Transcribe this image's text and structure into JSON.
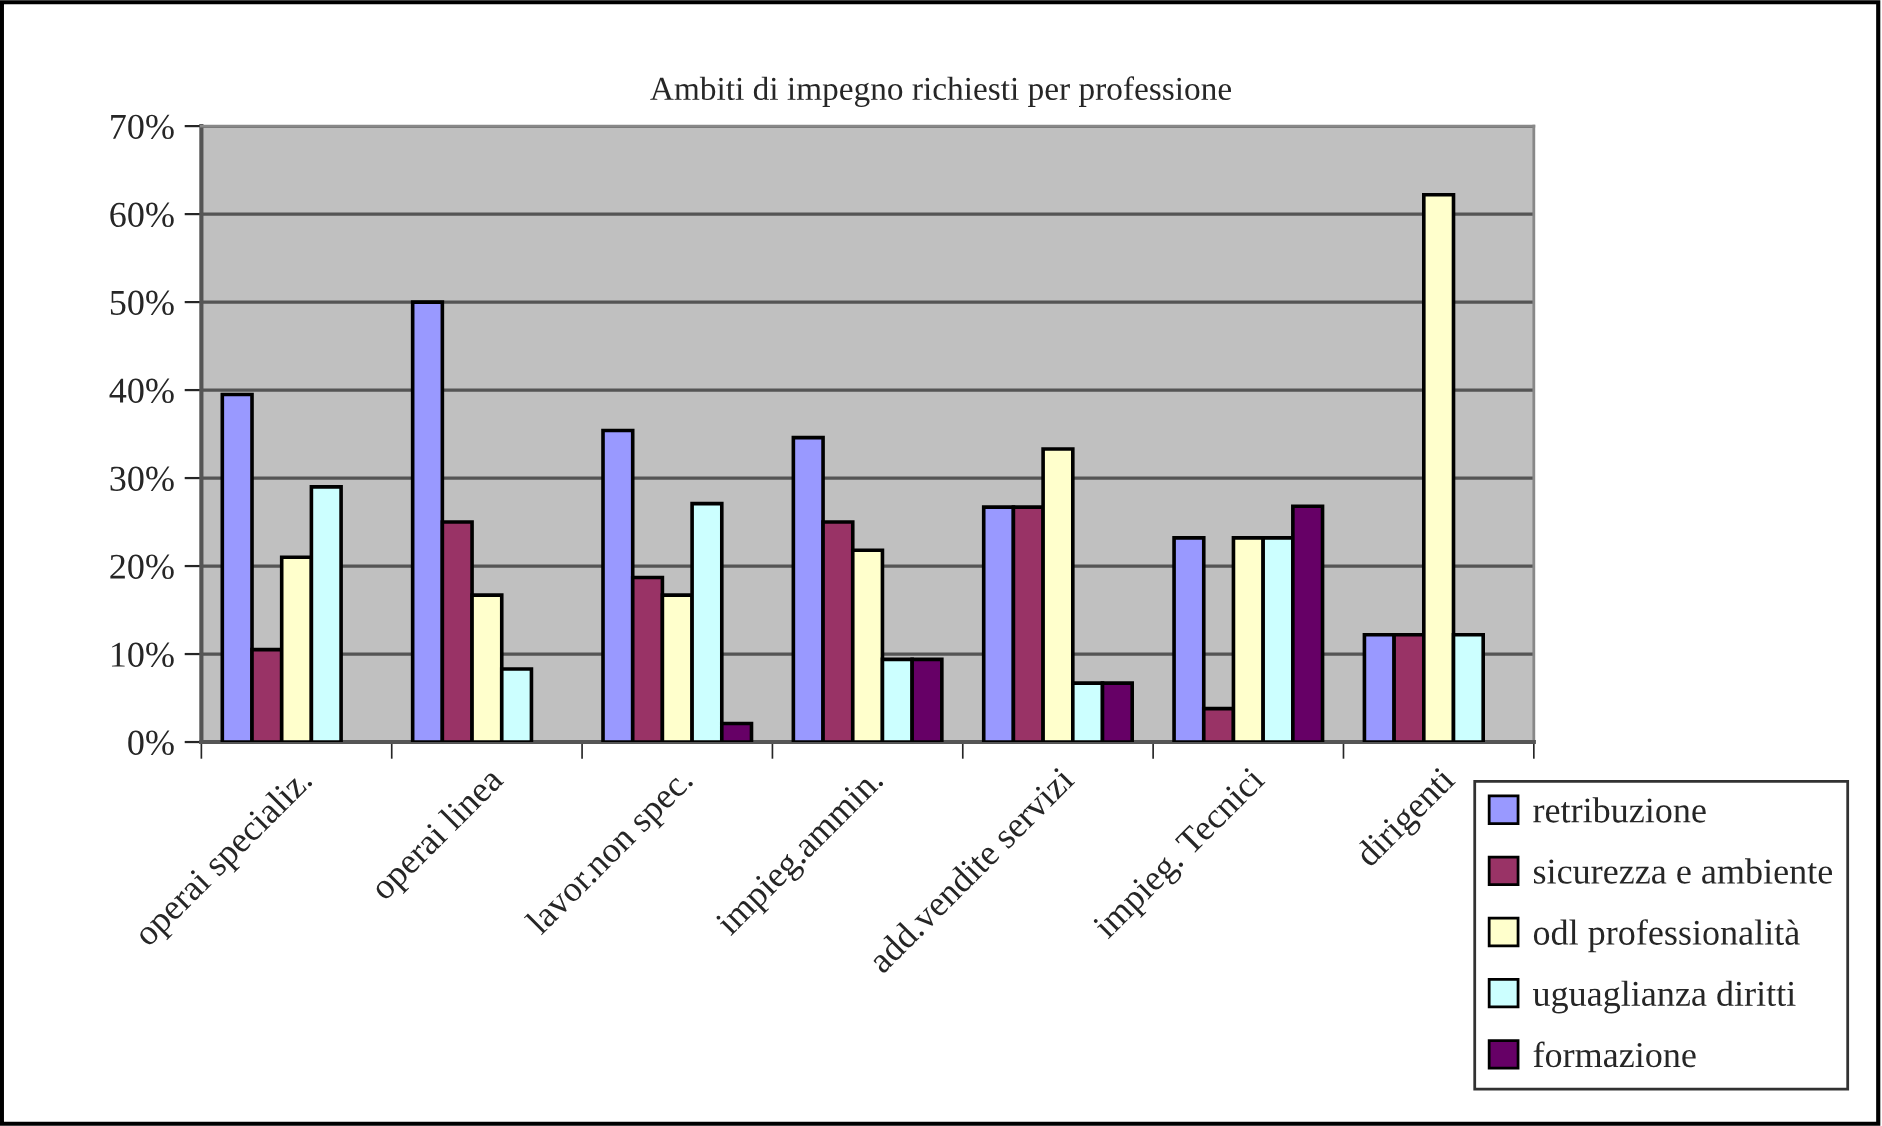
{
  "chart_data": {
    "type": "bar",
    "title": "Ambiti di impegno richiesti per professione",
    "categories": [
      "operai specializ.",
      "operai linea",
      "lavor.non spec.",
      "impieg.ammin.",
      "add.vendite servizi",
      "impieg. Tecnici",
      "dirigenti"
    ],
    "series": [
      {
        "name": "retribuzione",
        "color": "#9999ff",
        "values": [
          39.5,
          50,
          35.4,
          34.6,
          26.7,
          23.2,
          12.2
        ]
      },
      {
        "name": "sicurezza e ambiente",
        "color": "#993366",
        "values": [
          10.5,
          25,
          18.7,
          25,
          26.7,
          3.8,
          12.2
        ]
      },
      {
        "name": "odl professionalità",
        "color": "#ffffcc",
        "values": [
          21,
          16.7,
          16.7,
          21.8,
          33.3,
          23.2,
          62.2
        ]
      },
      {
        "name": "uguaglianza diritti",
        "color": "#ccffff",
        "values": [
          29,
          8.3,
          27.1,
          9.4,
          6.7,
          23.2,
          12.2
        ]
      },
      {
        "name": "formazione",
        "color": "#660066",
        "values": [
          null,
          null,
          2.1,
          9.4,
          6.7,
          26.8,
          null
        ]
      }
    ],
    "ylim": [
      0,
      70
    ],
    "yticks": [
      {
        "value": 0,
        "label": "0%"
      },
      {
        "value": 10,
        "label": "10%"
      },
      {
        "value": 20,
        "label": "20%"
      },
      {
        "value": 30,
        "label": "30%"
      },
      {
        "value": 40,
        "label": "40%"
      },
      {
        "value": 50,
        "label": "50%"
      },
      {
        "value": 60,
        "label": "60%"
      },
      {
        "value": 70,
        "label": "70%"
      }
    ],
    "grid": "y",
    "legend": "bottom right"
  }
}
